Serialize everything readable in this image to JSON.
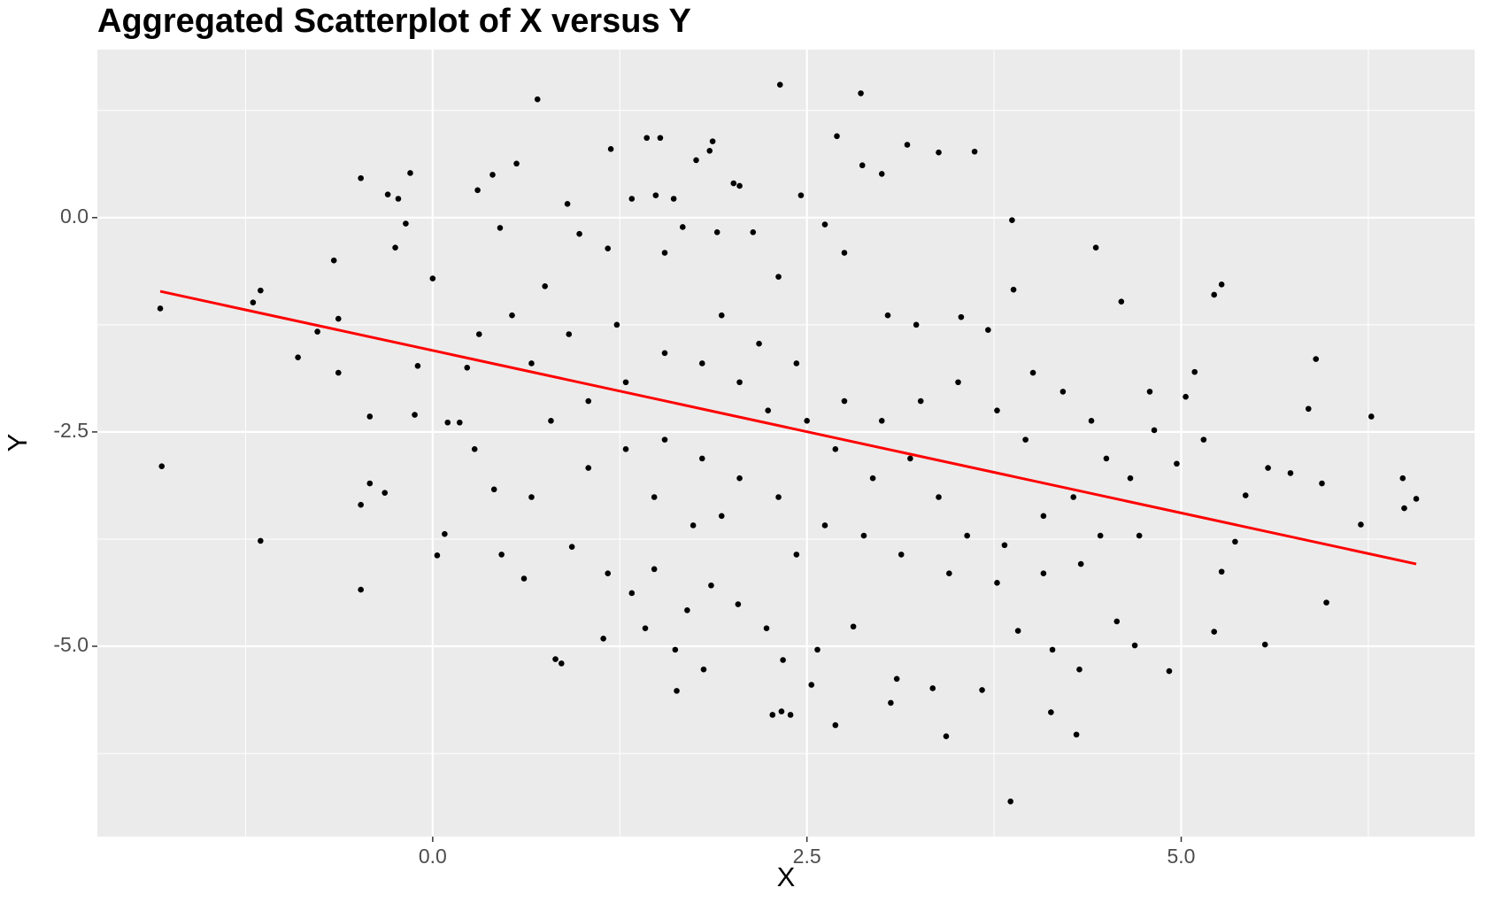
{
  "chart_data": {
    "type": "scatter",
    "title": "Aggregated Scatterplot of X versus Y",
    "x_label": "X",
    "y_label": "Y",
    "xlim": [
      -2.24,
      6.96
    ],
    "ylim": [
      -7.22,
      1.96
    ],
    "xticks": [
      {
        "value": 0,
        "label": "0.0"
      },
      2.5,
      {
        "value": 5,
        "label": "5.0"
      }
    ],
    "yticks": [
      {
        "value": 0,
        "label": "0.0"
      },
      -2.5,
      {
        "value": -5,
        "label": "-5.0"
      }
    ],
    "minor_xticks": [
      -1.25,
      1.25,
      3.75,
      6.25
    ],
    "minor_yticks": [
      1.25,
      -1.25,
      -3.75,
      -6.25
    ],
    "grid": true,
    "color": "#000000",
    "x": [
      -1.82,
      -1.81,
      -1.2,
      -1.15,
      -1.15,
      -0.9,
      -0.77,
      -0.66,
      -0.63,
      -0.63,
      -0.48,
      -0.48,
      -0.48,
      -0.42,
      -0.42,
      -0.32,
      -0.3,
      -0.23,
      -0.25,
      -0.18,
      -0.15,
      -0.12,
      -0.1,
      0.0,
      0.03,
      0.08,
      0.1,
      0.18,
      0.3,
      0.4,
      0.45,
      0.46,
      0.56,
      0.61,
      0.7,
      0.82,
      0.86,
      0.9,
      0.93,
      1.14,
      1.19,
      1.17,
      1.33,
      1.43,
      1.52,
      1.49,
      1.61,
      1.63,
      1.42,
      1.62,
      1.81,
      1.85,
      1.87,
      1.76,
      2.01,
      2.05,
      2.27,
      2.32,
      2.33,
      2.39,
      2.53,
      2.69,
      2.7,
      2.46,
      2.86,
      2.87,
      3.0,
      3.17,
      3.38,
      3.62,
      3.43,
      3.86,
      3.87,
      3.88,
      4.3,
      4.13,
      4.43,
      4.6,
      4.92,
      5.03,
      5.09,
      5.27,
      5.22,
      5.22,
      5.56,
      5.73,
      5.85,
      5.9,
      5.94,
      5.97,
      6.2,
      6.27,
      6.48,
      6.49,
      6.57,
      5.58,
      5.43,
      5.36,
      5.27,
      4.79,
      4.82,
      4.72,
      4.69,
      4.57,
      4.14,
      4.32,
      3.91,
      3.67,
      3.34,
      3.1,
      3.06,
      2.81,
      2.57,
      2.34,
      2.23,
      2.04,
      1.86,
      1.7,
      1.48,
      1.33,
      1.04,
      0.66,
      0.41,
      0.28,
      0.23,
      0.31,
      0.53,
      0.75,
      0.98,
      1.17,
      1.55,
      1.67,
      1.9,
      2.14,
      2.31,
      2.62,
      2.75,
      3.04,
      3.23,
      3.53,
      3.71,
      4.01,
      4.21,
      4.4,
      4.5,
      4.66,
      4.97,
      5.15,
      4.08,
      3.82,
      3.57,
      3.38,
      3.19,
      2.94,
      2.69,
      2.5,
      2.24,
      2.05,
      1.8,
      1.55,
      1.29,
      1.04,
      0.79,
      0.66,
      0.91,
      1.23,
      1.93,
      2.18,
      2.43,
      2.75,
      3.0,
      3.26,
      3.51,
      3.77,
      3.96,
      4.28,
      4.46,
      4.33,
      4.08,
      3.77,
      3.45,
      3.13,
      2.88,
      2.62,
      2.31,
      2.05,
      1.8,
      1.55,
      1.29,
      1.48,
      1.74,
      1.93,
      2.43
    ],
    "values": [
      -1.06,
      -2.9,
      -0.99,
      -0.85,
      -3.77,
      -1.63,
      -1.33,
      -0.5,
      -1.18,
      -1.81,
      0.46,
      -3.35,
      -4.34,
      -2.32,
      -3.1,
      -3.21,
      0.27,
      0.22,
      -0.35,
      -0.07,
      0.52,
      -2.3,
      -1.73,
      -0.71,
      -3.94,
      -3.69,
      -2.39,
      -2.39,
      0.32,
      0.5,
      -0.12,
      -3.93,
      0.63,
      -4.21,
      1.38,
      -5.15,
      -5.2,
      0.16,
      -3.84,
      -4.91,
      0.8,
      -4.15,
      0.22,
      0.93,
      0.93,
      0.26,
      0.22,
      -5.52,
      -4.79,
      -5.04,
      -5.27,
      0.78,
      0.89,
      0.67,
      0.4,
      0.37,
      -5.8,
      1.55,
      -5.76,
      -5.8,
      -5.45,
      -5.92,
      0.95,
      0.26,
      1.45,
      0.61,
      0.51,
      0.85,
      0.76,
      0.77,
      -6.05,
      -6.81,
      -0.03,
      -0.84,
      -6.03,
      -5.77,
      -0.35,
      -0.98,
      -5.29,
      -2.09,
      -1.8,
      -0.78,
      -0.9,
      -4.83,
      -4.98,
      -2.98,
      -2.23,
      -1.65,
      -3.1,
      -4.49,
      -3.58,
      -2.32,
      -3.04,
      -3.39,
      -3.28,
      -2.92,
      -3.24,
      -3.78,
      -4.13,
      -2.03,
      -2.48,
      -3.71,
      -4.99,
      -4.71,
      -5.04,
      -5.27,
      -4.82,
      -5.51,
      -5.49,
      -5.38,
      -5.66,
      -4.77,
      -5.04,
      -5.16,
      -4.79,
      -4.51,
      -4.29,
      -4.58,
      -4.1,
      -4.38,
      -2.92,
      -3.26,
      -3.17,
      -2.7,
      -1.75,
      -1.36,
      -1.14,
      -0.8,
      -0.19,
      -0.36,
      -0.41,
      -0.11,
      -0.17,
      -0.17,
      -0.69,
      -0.08,
      -0.41,
      -1.14,
      -1.25,
      -1.16,
      -1.31,
      -1.81,
      -2.03,
      -2.37,
      -2.81,
      -3.04,
      -2.87,
      -2.59,
      -3.48,
      -3.82,
      -3.71,
      -3.26,
      -2.81,
      -3.04,
      -2.7,
      -2.37,
      -2.25,
      -1.92,
      -1.7,
      -1.58,
      -1.92,
      -2.14,
      -2.37,
      -1.7,
      -1.36,
      -1.25,
      -1.14,
      -1.47,
      -1.7,
      -2.14,
      -2.37,
      -2.14,
      -1.92,
      -2.25,
      -2.59,
      -3.26,
      -3.71,
      -4.04,
      -4.15,
      -4.26,
      -4.15,
      -3.93,
      -3.71,
      -3.59,
      -3.26,
      -3.04,
      -2.81,
      -2.59,
      -2.7,
      -3.26,
      -3.59,
      -3.48,
      -3.93
    ],
    "trend": {
      "x": [
        -1.82,
        6.57
      ],
      "values": [
        -0.86,
        -4.04
      ],
      "color": "#ff0000"
    }
  }
}
